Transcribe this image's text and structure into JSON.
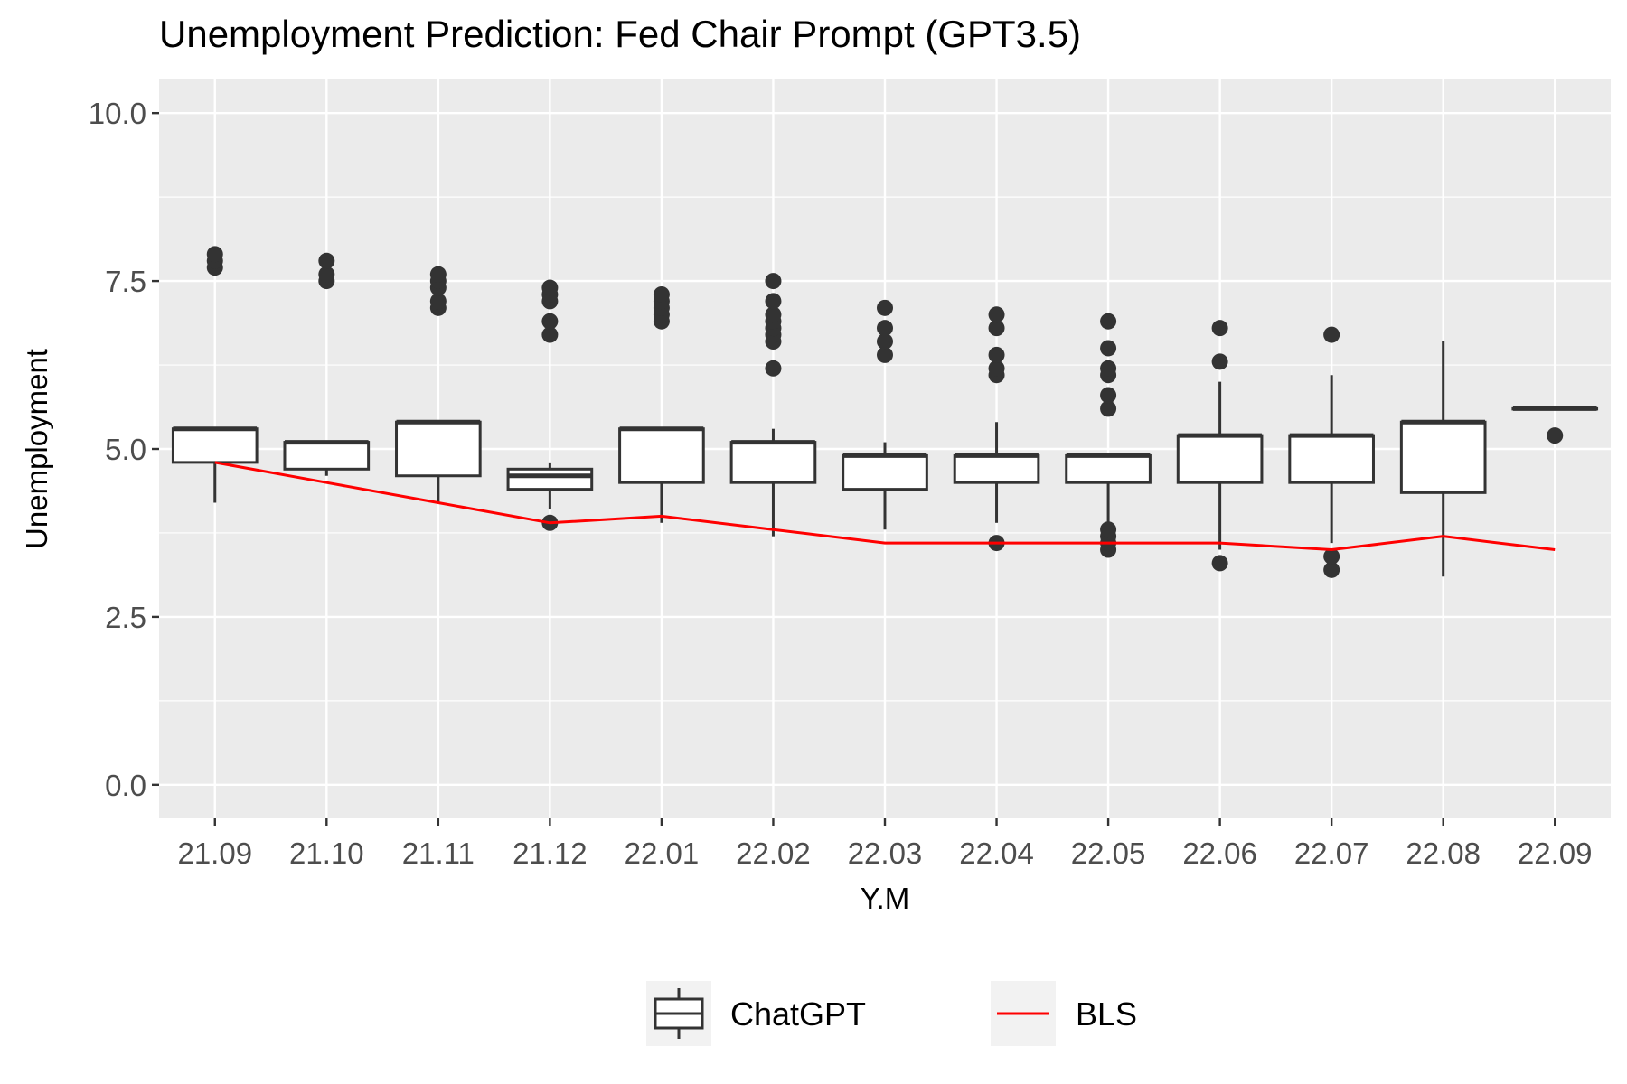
{
  "chart_data": {
    "type": "box",
    "title": "Unemployment Prediction: Fed Chair Prompt (GPT3.5)",
    "xlabel": "Y.M",
    "ylabel": "Unemployment",
    "ylim": [
      -0.5,
      10.5
    ],
    "y_ticks": [
      "0.0",
      "2.5",
      "5.0",
      "7.5",
      "10.0"
    ],
    "grid": true,
    "legend_position": "bottom",
    "categories": [
      "21.09",
      "21.10",
      "21.11",
      "21.12",
      "22.01",
      "22.02",
      "22.03",
      "22.04",
      "22.05",
      "22.06",
      "22.07",
      "22.08",
      "22.09"
    ],
    "series": [
      {
        "name": "ChatGPT",
        "kind": "boxplot",
        "boxes": [
          {
            "lower": 4.2,
            "q1": 4.8,
            "median": 5.3,
            "q3": 5.3,
            "upper": 5.3,
            "outliers": [
              7.7,
              7.8,
              7.9
            ]
          },
          {
            "lower": 4.6,
            "q1": 4.7,
            "median": 5.1,
            "q3": 5.1,
            "upper": 5.1,
            "outliers": [
              7.5,
              7.6,
              7.8
            ]
          },
          {
            "lower": 4.2,
            "q1": 4.6,
            "median": 5.4,
            "q3": 5.4,
            "upper": 5.4,
            "outliers": [
              7.1,
              7.2,
              7.4,
              7.5,
              7.6
            ]
          },
          {
            "lower": 4.1,
            "q1": 4.4,
            "median": 4.6,
            "q3": 4.7,
            "upper": 4.8,
            "outliers": [
              3.9,
              6.7,
              6.9,
              7.2,
              7.3,
              7.4
            ]
          },
          {
            "lower": 3.9,
            "q1": 4.5,
            "median": 5.3,
            "q3": 5.3,
            "upper": 5.3,
            "outliers": [
              6.9,
              7.0,
              7.1,
              7.2,
              7.3
            ]
          },
          {
            "lower": 3.7,
            "q1": 4.5,
            "median": 5.1,
            "q3": 5.1,
            "upper": 5.3,
            "outliers": [
              6.2,
              6.6,
              6.7,
              6.8,
              6.9,
              7.0,
              7.2,
              7.5
            ]
          },
          {
            "lower": 3.8,
            "q1": 4.4,
            "median": 4.9,
            "q3": 4.9,
            "upper": 5.1,
            "outliers": [
              6.4,
              6.6,
              6.8,
              7.1
            ]
          },
          {
            "lower": 3.9,
            "q1": 4.5,
            "median": 4.9,
            "q3": 4.9,
            "upper": 5.4,
            "outliers": [
              3.6,
              6.1,
              6.2,
              6.4,
              6.8,
              7.0
            ]
          },
          {
            "lower": 3.9,
            "q1": 4.5,
            "median": 4.9,
            "q3": 4.9,
            "upper": 4.9,
            "outliers": [
              3.5,
              3.6,
              3.7,
              3.8,
              5.6,
              5.8,
              6.1,
              6.2,
              6.5,
              6.9
            ]
          },
          {
            "lower": 3.5,
            "q1": 4.5,
            "median": 5.2,
            "q3": 5.2,
            "upper": 6.0,
            "outliers": [
              3.3,
              6.3,
              6.8
            ]
          },
          {
            "lower": 3.6,
            "q1": 4.5,
            "median": 5.2,
            "q3": 5.2,
            "upper": 6.1,
            "outliers": [
              3.2,
              3.4,
              6.7
            ]
          },
          {
            "lower": 3.1,
            "q1": 4.35,
            "median": 5.4,
            "q3": 5.4,
            "upper": 6.6,
            "outliers": []
          },
          {
            "lower": 5.6,
            "q1": 5.6,
            "median": 5.6,
            "q3": 5.6,
            "upper": 5.6,
            "outliers": [
              5.2
            ]
          }
        ]
      },
      {
        "name": "BLS",
        "kind": "line",
        "color": "#ff0000",
        "values": [
          4.8,
          4.5,
          4.2,
          3.9,
          4.0,
          3.8,
          3.6,
          3.6,
          3.6,
          3.6,
          3.5,
          3.7,
          3.5
        ]
      }
    ]
  }
}
